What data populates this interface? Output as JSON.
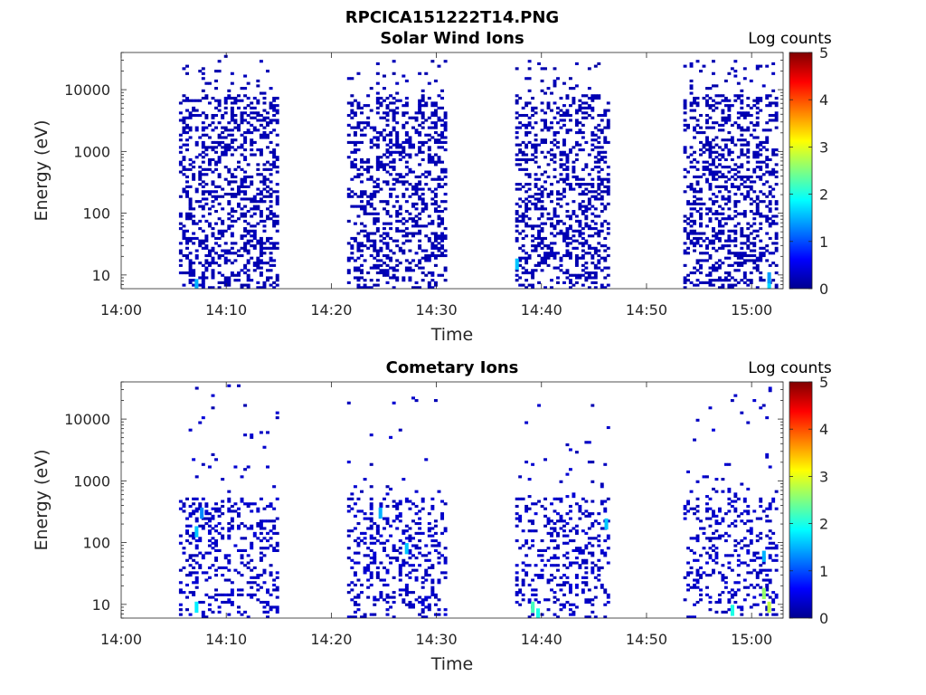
{
  "figure": {
    "title": "RPCICA151222T14.PNG"
  },
  "colormap": {
    "name": "jet",
    "stops": [
      "#00008f",
      "#0000ff",
      "#0080ff",
      "#00ffff",
      "#80ff80",
      "#ffff00",
      "#ff8000",
      "#ff0000",
      "#800000"
    ]
  },
  "chart_data": [
    {
      "type": "heatmap",
      "title": "Solar Wind Ions",
      "xlabel": "Time",
      "ylabel": "Energy (eV)",
      "x_scale": "time",
      "y_scale": "log",
      "xlim": [
        "14:00",
        "15:03"
      ],
      "ylim": [
        6,
        40000
      ],
      "x_ticks": [
        "14:00",
        "14:10",
        "14:20",
        "14:30",
        "14:40",
        "14:50",
        "15:00"
      ],
      "y_ticks": [
        10,
        100,
        1000,
        10000
      ],
      "y_tick_labels": [
        "10",
        "100",
        "1000",
        "10000"
      ],
      "colorbar": {
        "label": "Log counts",
        "range": [
          0,
          5
        ],
        "ticks": [
          "0",
          "1",
          "2",
          "3",
          "4",
          "5"
        ]
      },
      "segments": [
        {
          "start": "14:05:30",
          "end": "14:15:00"
        },
        {
          "start": "14:21:30",
          "end": "14:31:00"
        },
        {
          "start": "14:37:30",
          "end": "14:46:30"
        },
        {
          "start": "14:53:30",
          "end": "15:02:30"
        }
      ],
      "profile": {
        "dense_energy_range": [
          150,
          8000
        ],
        "typical_log_counts": 0.2,
        "hotspots": [
          {
            "time": "14:07:00",
            "energy": 7,
            "log_counts": 1.5
          },
          {
            "time": "14:37:30",
            "energy": 15,
            "log_counts": 1.6
          },
          {
            "time": "15:01:30",
            "energy": 7,
            "log_counts": 1.7
          },
          {
            "time": "15:01:30",
            "energy": 9,
            "log_counts": 1.4
          }
        ]
      }
    },
    {
      "type": "heatmap",
      "title": "Cometary Ions",
      "xlabel": "Time",
      "ylabel": "Energy (eV)",
      "x_scale": "time",
      "y_scale": "log",
      "xlim": [
        "14:00",
        "15:03"
      ],
      "ylim": [
        6,
        40000
      ],
      "x_ticks": [
        "14:00",
        "14:10",
        "14:20",
        "14:30",
        "14:40",
        "14:50",
        "15:00"
      ],
      "y_ticks": [
        10,
        100,
        1000,
        10000
      ],
      "y_tick_labels": [
        "10",
        "100",
        "1000",
        "10000"
      ],
      "colorbar": {
        "label": "Log counts",
        "range": [
          0,
          5
        ],
        "ticks": [
          "0",
          "1",
          "2",
          "3",
          "4",
          "5"
        ]
      },
      "segments": [
        {
          "start": "14:05:30",
          "end": "14:15:00"
        },
        {
          "start": "14:21:30",
          "end": "14:31:00"
        },
        {
          "start": "14:37:30",
          "end": "14:46:30"
        },
        {
          "start": "14:53:30",
          "end": "15:02:30"
        }
      ],
      "profile": {
        "dense_energy_range": [
          8,
          500
        ],
        "typical_log_counts": 0.3,
        "hotspots": [
          {
            "time": "14:07:00",
            "energy": 150,
            "log_counts": 1.6
          },
          {
            "time": "14:07:30",
            "energy": 300,
            "log_counts": 1.3
          },
          {
            "time": "14:07:00",
            "energy": 9,
            "log_counts": 1.8
          },
          {
            "time": "14:24:30",
            "energy": 300,
            "log_counts": 1.5
          },
          {
            "time": "14:27:00",
            "energy": 80,
            "log_counts": 1.6
          },
          {
            "time": "14:39:00",
            "energy": 9,
            "log_counts": 2.2
          },
          {
            "time": "14:39:30",
            "energy": 7,
            "log_counts": 2.0
          },
          {
            "time": "14:46:00",
            "energy": 200,
            "log_counts": 1.6
          },
          {
            "time": "14:58:00",
            "energy": 8,
            "log_counts": 2.0
          },
          {
            "time": "15:01:00",
            "energy": 15,
            "log_counts": 2.6
          },
          {
            "time": "15:01:30",
            "energy": 9,
            "log_counts": 2.8
          },
          {
            "time": "15:01:00",
            "energy": 60,
            "log_counts": 1.5
          }
        ]
      }
    }
  ]
}
